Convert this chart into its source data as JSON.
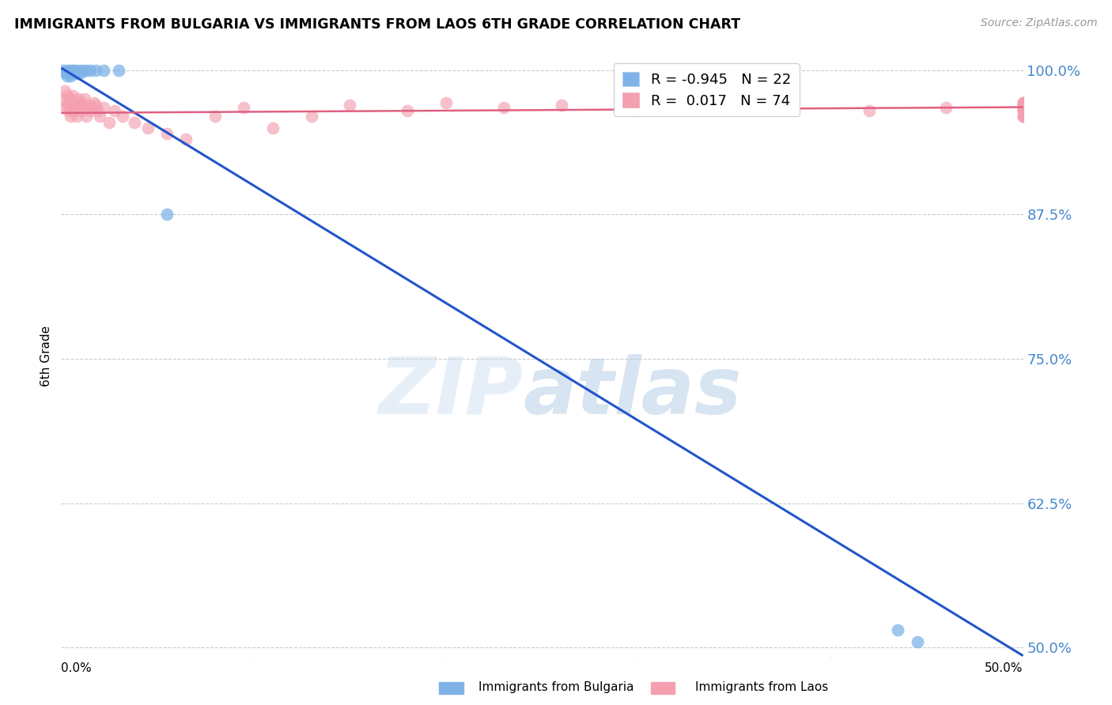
{
  "title": "IMMIGRANTS FROM BULGARIA VS IMMIGRANTS FROM LAOS 6TH GRADE CORRELATION CHART",
  "source": "Source: ZipAtlas.com",
  "ylabel": "6th Grade",
  "xmin": 0.0,
  "xmax": 0.5,
  "ymin": 0.49,
  "ymax": 1.015,
  "legend_bulgaria_R": "-0.945",
  "legend_bulgaria_N": "22",
  "legend_laos_R": " 0.017",
  "legend_laos_N": "74",
  "color_bulgaria": "#7FB3E8",
  "color_laos": "#F4A0B0",
  "trendline_bulgaria_color": "#2255CC",
  "trendline_laos_color": "#E06080",
  "ytick_vals": [
    1.0,
    0.875,
    0.75,
    0.625,
    0.5
  ],
  "ytick_labels": [
    "100.0%",
    "87.5%",
    "75.0%",
    "62.5%",
    "50.0%"
  ],
  "bul_x": [
    0.001,
    0.002,
    0.003,
    0.003,
    0.004,
    0.005,
    0.005,
    0.006,
    0.007,
    0.007,
    0.008,
    0.009,
    0.01,
    0.011,
    0.013,
    0.015,
    0.018,
    0.022,
    0.03,
    0.055,
    0.435,
    0.445
  ],
  "bul_y": [
    1.0,
    0.998,
    1.0,
    0.995,
    0.998,
    1.0,
    0.995,
    1.0,
    1.0,
    0.998,
    0.997,
    1.0,
    0.998,
    1.0,
    1.0,
    1.0,
    1.0,
    1.0,
    1.0,
    0.875,
    0.515,
    0.505
  ],
  "laos_x": [
    0.001,
    0.002,
    0.002,
    0.003,
    0.003,
    0.004,
    0.004,
    0.005,
    0.005,
    0.006,
    0.006,
    0.007,
    0.007,
    0.008,
    0.008,
    0.009,
    0.009,
    0.01,
    0.01,
    0.011,
    0.012,
    0.012,
    0.013,
    0.014,
    0.015,
    0.016,
    0.017,
    0.018,
    0.019,
    0.02,
    0.022,
    0.025,
    0.028,
    0.032,
    0.038,
    0.045,
    0.055,
    0.065,
    0.08,
    0.095,
    0.11,
    0.13,
    0.15,
    0.18,
    0.2,
    0.23,
    0.26,
    0.3,
    0.34,
    0.38,
    0.42,
    0.46,
    0.5,
    0.5,
    0.5,
    0.5,
    0.5,
    0.5,
    0.5,
    0.5,
    0.5,
    0.5,
    0.5,
    0.5,
    0.5,
    0.5,
    0.5,
    0.5,
    0.5,
    0.5,
    0.5,
    0.5,
    0.5,
    0.5
  ],
  "laos_y": [
    0.975,
    0.968,
    0.982,
    0.97,
    0.978,
    0.965,
    0.972,
    0.96,
    0.975,
    0.968,
    0.978,
    0.965,
    0.972,
    0.97,
    0.96,
    0.968,
    0.975,
    0.965,
    0.972,
    0.97,
    0.968,
    0.975,
    0.96,
    0.97,
    0.965,
    0.968,
    0.972,
    0.97,
    0.965,
    0.96,
    0.968,
    0.955,
    0.965,
    0.96,
    0.955,
    0.95,
    0.945,
    0.94,
    0.96,
    0.968,
    0.95,
    0.96,
    0.97,
    0.965,
    0.972,
    0.968,
    0.97,
    0.965,
    0.968,
    0.97,
    0.965,
    0.968,
    0.97,
    0.965,
    0.968,
    0.972,
    0.96,
    0.97,
    0.965,
    0.968,
    0.972,
    0.96,
    0.97,
    0.965,
    0.968,
    0.972,
    0.96,
    0.97,
    0.965,
    0.968,
    0.972,
    0.96,
    0.97,
    0.965
  ]
}
